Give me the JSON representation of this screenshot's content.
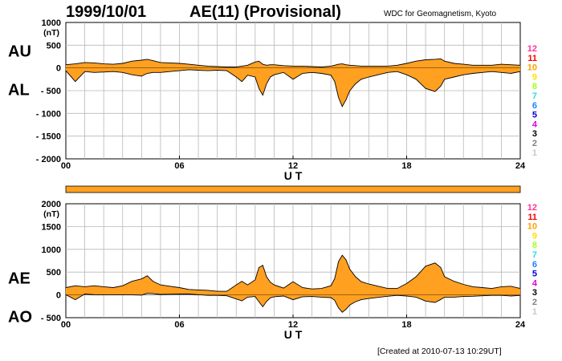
{
  "header": {
    "date": "1999/10/01",
    "title": "AE(11) (Provisional)",
    "source": "WDC for Geomagnetism, Kyoto"
  },
  "footer": {
    "created": "[Created at 2010-07-13 10:29UT]"
  },
  "colors": {
    "fill": "#ffa020",
    "line": "#000000",
    "grid": "#b8b8b8",
    "status_bar": "#ffa020"
  },
  "legend_levels": [
    {
      "label": "12",
      "color": "#ff3399"
    },
    {
      "label": "11",
      "color": "#ff0000"
    },
    {
      "label": "10",
      "color": "#ffa000"
    },
    {
      "label": "9",
      "color": "#ffe000"
    },
    {
      "label": "8",
      "color": "#a0ff20"
    },
    {
      "label": "7",
      "color": "#20e0e0"
    },
    {
      "label": "6",
      "color": "#2080ff"
    },
    {
      "label": "5",
      "color": "#0000d0"
    },
    {
      "label": "4",
      "color": "#e000e0"
    },
    {
      "label": "3",
      "color": "#000000"
    },
    {
      "label": "2",
      "color": "#808080"
    },
    {
      "label": "1",
      "color": "#c8c8c8"
    }
  ],
  "chart_data": [
    {
      "type": "area",
      "panel": "AU/AL",
      "series_labels": [
        "AU",
        "AL"
      ],
      "ylabel": "(nT)",
      "xlabel": "U T",
      "xlim": [
        0,
        24
      ],
      "ylim": [
        -2000,
        1000
      ],
      "x_ticks": [
        "00",
        "06",
        "12",
        "18",
        "24"
      ],
      "y_ticks": [
        "1000",
        "500",
        "0",
        "- 500",
        "- 1000",
        "- 1500",
        "- 2000"
      ],
      "grid": true,
      "x": [
        0,
        0.5,
        1,
        1.5,
        2,
        2.5,
        3,
        3.5,
        4,
        4.3,
        4.6,
        5,
        5.5,
        6,
        6.5,
        7,
        7.5,
        8,
        8.5,
        9,
        9.3,
        9.6,
        10,
        10.2,
        10.4,
        10.6,
        10.8,
        11,
        11.5,
        12,
        12.5,
        13,
        13.5,
        14,
        14.2,
        14.4,
        14.6,
        14.8,
        15,
        15.3,
        15.6,
        16,
        16.5,
        17,
        17.5,
        18,
        18.5,
        19,
        19.5,
        19.8,
        20,
        20.5,
        21,
        21.5,
        22,
        22.5,
        23,
        23.5,
        24
      ],
      "AU": [
        70,
        90,
        120,
        110,
        90,
        80,
        100,
        150,
        170,
        190,
        160,
        120,
        110,
        100,
        80,
        60,
        40,
        30,
        20,
        20,
        40,
        60,
        130,
        150,
        80,
        60,
        70,
        70,
        50,
        40,
        40,
        30,
        20,
        40,
        60,
        80,
        90,
        70,
        60,
        50,
        40,
        40,
        40,
        40,
        60,
        100,
        150,
        180,
        190,
        200,
        150,
        100,
        80,
        60,
        60,
        60,
        80,
        70,
        60
      ],
      "AL": [
        -60,
        -300,
        -80,
        -100,
        -90,
        -80,
        -100,
        -150,
        -180,
        -120,
        -100,
        -100,
        -80,
        -60,
        -40,
        -50,
        -60,
        -50,
        -60,
        -200,
        -300,
        -160,
        -200,
        -450,
        -600,
        -350,
        -200,
        -150,
        -100,
        -250,
        -120,
        -100,
        -120,
        -160,
        -300,
        -650,
        -850,
        -700,
        -500,
        -350,
        -250,
        -200,
        -150,
        -100,
        -80,
        -150,
        -250,
        -450,
        -520,
        -400,
        -250,
        -200,
        -150,
        -120,
        -100,
        -80,
        -100,
        -120,
        -80
      ]
    },
    {
      "type": "area",
      "panel": "AE/AO",
      "series_labels": [
        "AE",
        "AO"
      ],
      "ylabel": "(nT)",
      "xlabel": "U T",
      "xlim": [
        0,
        24
      ],
      "ylim": [
        -500,
        2000
      ],
      "x_ticks": [
        "00",
        "06",
        "12",
        "18",
        "24"
      ],
      "y_ticks": [
        "2000",
        "1500",
        "1000",
        "500",
        "0",
        "- 500"
      ],
      "grid": true,
      "x": [
        0,
        0.5,
        1,
        1.5,
        2,
        2.5,
        3,
        3.5,
        4,
        4.3,
        4.6,
        5,
        5.5,
        6,
        6.5,
        7,
        7.5,
        8,
        8.5,
        9,
        9.3,
        9.6,
        10,
        10.2,
        10.4,
        10.6,
        10.8,
        11,
        11.5,
        12,
        12.5,
        13,
        13.5,
        14,
        14.2,
        14.4,
        14.6,
        14.8,
        15,
        15.3,
        15.6,
        16,
        16.5,
        17,
        17.5,
        18,
        18.5,
        19,
        19.5,
        19.8,
        20,
        20.5,
        21,
        21.5,
        22,
        22.5,
        23,
        23.5,
        24
      ],
      "AE": [
        160,
        200,
        180,
        200,
        180,
        160,
        200,
        300,
        350,
        420,
        300,
        220,
        190,
        160,
        120,
        110,
        100,
        80,
        80,
        220,
        300,
        220,
        330,
        600,
        650,
        400,
        280,
        220,
        150,
        290,
        160,
        130,
        140,
        200,
        360,
        730,
        870,
        770,
        560,
        400,
        290,
        240,
        190,
        140,
        140,
        250,
        400,
        630,
        700,
        600,
        400,
        300,
        230,
        180,
        160,
        140,
        180,
        190,
        140
      ],
      "AO": [
        5,
        -105,
        20,
        5,
        0,
        0,
        0,
        0,
        -5,
        35,
        30,
        10,
        15,
        20,
        20,
        5,
        -10,
        -10,
        -20,
        -90,
        -130,
        -50,
        -35,
        -150,
        -260,
        -145,
        -65,
        -40,
        -25,
        -105,
        -40,
        -35,
        -50,
        -60,
        -120,
        -285,
        -380,
        -315,
        -220,
        -150,
        -105,
        -80,
        -55,
        -30,
        -10,
        -25,
        -50,
        -135,
        -165,
        -100,
        -50,
        -50,
        -35,
        -30,
        -20,
        -10,
        -10,
        -25,
        -10
      ]
    }
  ]
}
